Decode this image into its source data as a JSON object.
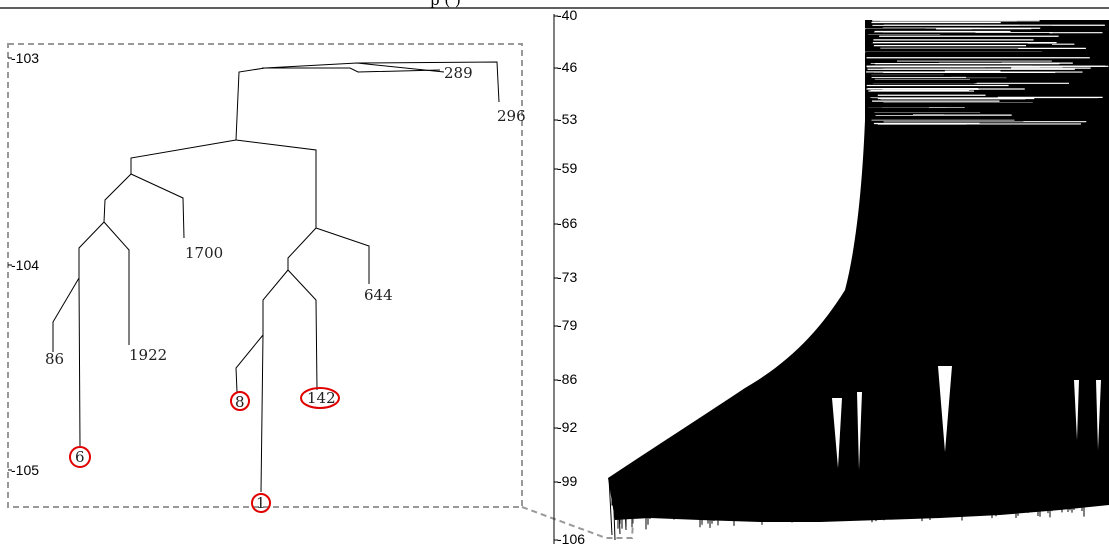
{
  "title_fragment": "p                                    (         )",
  "zoom_panel": {
    "y_ticks": [
      "-103",
      "-104",
      "-105"
    ],
    "leaves": [
      {
        "label": "289",
        "highlighted": false
      },
      {
        "label": "296",
        "highlighted": false
      },
      {
        "label": "1700",
        "highlighted": false
      },
      {
        "label": "644",
        "highlighted": false
      },
      {
        "label": "86",
        "highlighted": false
      },
      {
        "label": "1922",
        "highlighted": false
      },
      {
        "label": "8",
        "highlighted": true
      },
      {
        "label": "142",
        "highlighted": true
      },
      {
        "label": "6",
        "highlighted": true
      },
      {
        "label": "1",
        "highlighted": true
      }
    ],
    "highlight_color": "#e00000",
    "box_color": "#999999"
  },
  "full_panel": {
    "y_ticks": [
      "-40",
      "-46",
      "-53",
      "-59",
      "-66",
      "-73",
      "-79",
      "-86",
      "-92",
      "-99",
      "-106"
    ]
  }
}
